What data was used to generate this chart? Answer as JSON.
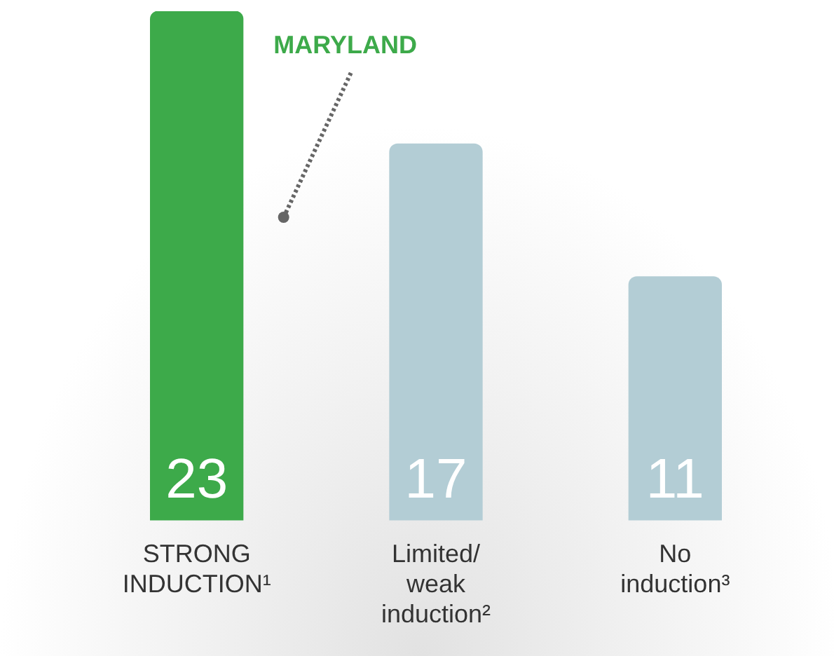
{
  "chart_data": {
    "type": "bar",
    "categories": [
      "STRONG INDUCTION¹",
      "Limited/ weak induction²",
      "No induction³"
    ],
    "values": [
      23,
      17,
      11
    ],
    "colors": [
      "#3daa4a",
      "#b3cdd5",
      "#b3cdd5"
    ],
    "data_labels": true,
    "grid": false,
    "legend": false,
    "annotations": [
      "MARYLAND"
    ]
  }
}
